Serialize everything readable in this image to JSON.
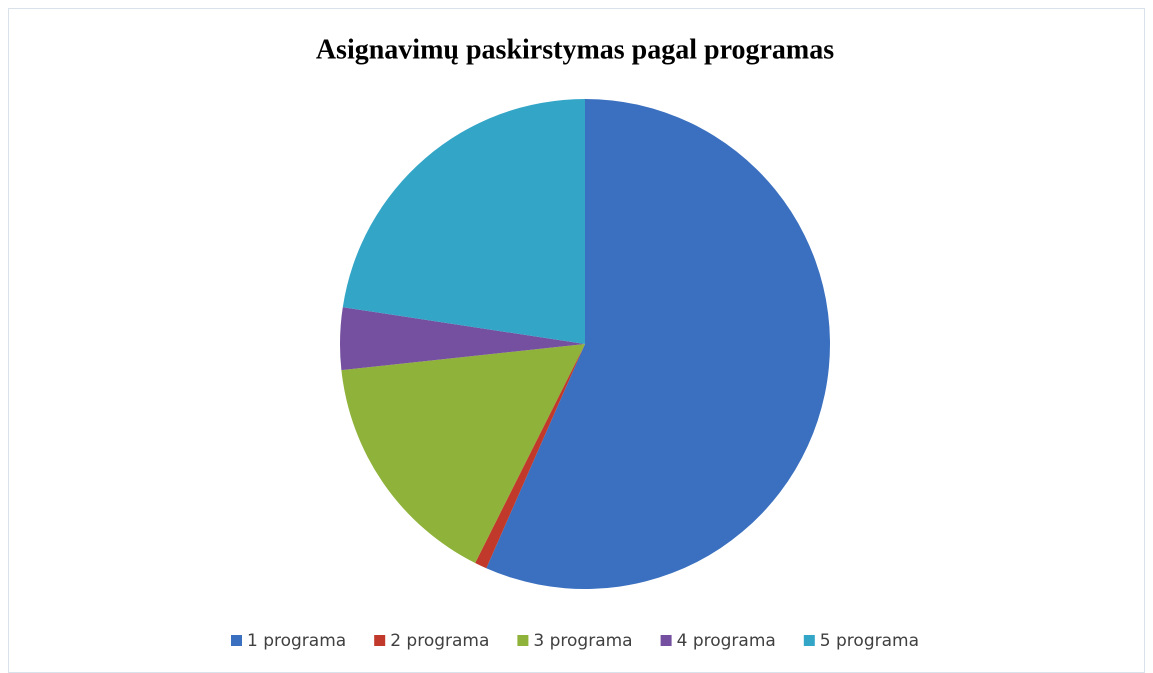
{
  "chart_data": {
    "type": "pie",
    "title": "Asignavimų paskirstymas pagal programas",
    "categories": [
      "1 programa",
      "2 programa",
      "3 programa",
      "4 programa",
      "5 programa"
    ],
    "values": [
      56.6,
      0.8,
      15.9,
      4.1,
      22.6
    ],
    "colors": [
      "#3a70bf",
      "#c0392b",
      "#8fb23a",
      "#7650a0",
      "#33a5c7"
    ],
    "legend": "bottom"
  }
}
